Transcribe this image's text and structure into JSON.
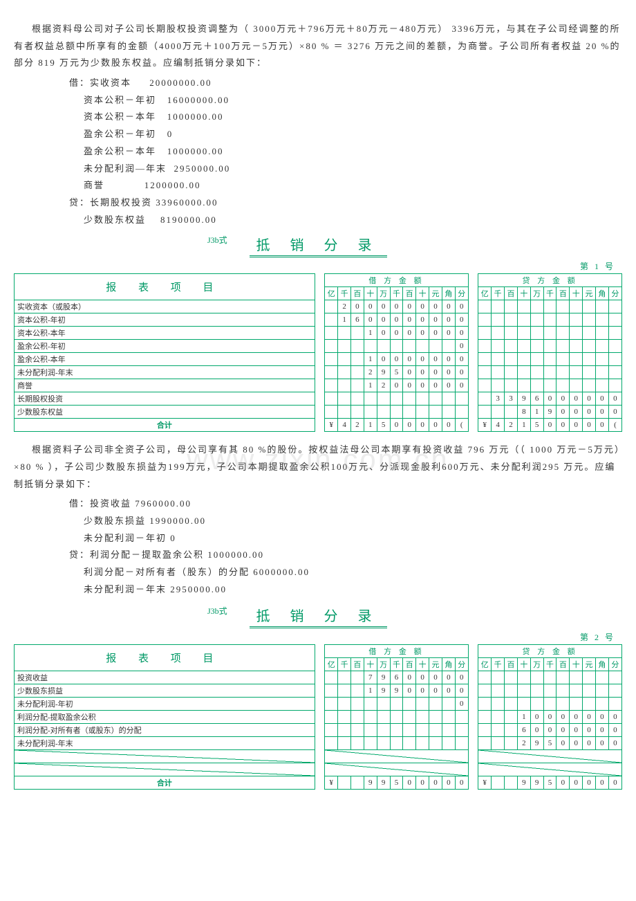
{
  "watermark": "www.zixin.com.cn",
  "block1": {
    "para": "根据资料母公司对子公司长期股权投资调整为（ 3000万元＋796万元＋80万元－480万元） 3396万元，与其在子公司经调整的所有者权益总额中所享有的金额（4000万元＋100万元－5万元）×80 % ＝ 3276 万元之间的差额，为商誉。子公司所有者权益 20 %的部分 819 万元为少数股东权益。应编制抵销分录如下：",
    "entries": [
      "借：实收资本     20000000.00",
      "    资本公积－年初   16000000.00",
      "    资本公积－本年   1000000.00",
      "    盈余公积－年初   0",
      "    盈余公积－本年   1000000.00",
      "    未分配利润—年末  2950000.00",
      "    商誉           1200000.00",
      "贷：长期股权投资 33960000.00",
      "    少数股东权益    8190000.00"
    ]
  },
  "form1": {
    "code": "J3b式",
    "title": "抵 销 分 录",
    "no": "第 1 号",
    "header_item": "报 表 项 目",
    "header_debit": "借 方 金 额",
    "header_credit": "贷 方 金 额",
    "units": [
      "亿",
      "千",
      "百",
      "十",
      "万",
      "千",
      "百",
      "十",
      "元",
      "角",
      "分"
    ],
    "rows": [
      {
        "label": "实收资本（或股本）",
        "d": [
          "",
          "2",
          "0",
          "0",
          "0",
          "0",
          "0",
          "0",
          "0",
          "0",
          "0"
        ],
        "c": [
          "",
          "",
          "",
          "",
          "",
          "",
          "",
          "",
          "",
          "",
          ""
        ]
      },
      {
        "label": "资本公积-年初",
        "d": [
          "",
          "1",
          "6",
          "0",
          "0",
          "0",
          "0",
          "0",
          "0",
          "0",
          "0"
        ],
        "c": [
          "",
          "",
          "",
          "",
          "",
          "",
          "",
          "",
          "",
          "",
          ""
        ]
      },
      {
        "label": "资本公积-本年",
        "d": [
          "",
          "",
          "",
          "1",
          "0",
          "0",
          "0",
          "0",
          "0",
          "0",
          "0"
        ],
        "c": [
          "",
          "",
          "",
          "",
          "",
          "",
          "",
          "",
          "",
          "",
          ""
        ]
      },
      {
        "label": "盈余公积-年初",
        "d": [
          "",
          "",
          "",
          "",
          "",
          "",
          "",
          "",
          "",
          "",
          "0"
        ],
        "c": [
          "",
          "",
          "",
          "",
          "",
          "",
          "",
          "",
          "",
          "",
          ""
        ]
      },
      {
        "label": "盈余公积-本年",
        "d": [
          "",
          "",
          "",
          "1",
          "0",
          "0",
          "0",
          "0",
          "0",
          "0",
          "0"
        ],
        "c": [
          "",
          "",
          "",
          "",
          "",
          "",
          "",
          "",
          "",
          "",
          ""
        ]
      },
      {
        "label": "未分配利润-年末",
        "d": [
          "",
          "",
          "",
          "2",
          "9",
          "5",
          "0",
          "0",
          "0",
          "0",
          "0"
        ],
        "c": [
          "",
          "",
          "",
          "",
          "",
          "",
          "",
          "",
          "",
          "",
          ""
        ]
      },
      {
        "label": "商誉",
        "d": [
          "",
          "",
          "",
          "1",
          "2",
          "0",
          "0",
          "0",
          "0",
          "0",
          "0"
        ],
        "c": [
          "",
          "",
          "",
          "",
          "",
          "",
          "",
          "",
          "",
          "",
          ""
        ]
      },
      {
        "label": "长期股权投资",
        "d": [
          "",
          "",
          "",
          "",
          "",
          "",
          "",
          "",
          "",
          "",
          ""
        ],
        "c": [
          "",
          "3",
          "3",
          "9",
          "6",
          "0",
          "0",
          "0",
          "0",
          "0",
          "0"
        ]
      },
      {
        "label": "少数股东权益",
        "d": [
          "",
          "",
          "",
          "",
          "",
          "",
          "",
          "",
          "",
          "",
          ""
        ],
        "c": [
          "",
          "",
          "",
          "8",
          "1",
          "9",
          "0",
          "0",
          "0",
          "0",
          "0"
        ]
      }
    ],
    "total_label": "合计",
    "total_d": [
      "¥",
      "4",
      "2",
      "1",
      "5",
      "0",
      "0",
      "0",
      "0",
      "0",
      "("
    ],
    "total_c": [
      "¥",
      "4",
      "2",
      "1",
      "5",
      "0",
      "0",
      "0",
      "0",
      "0",
      "("
    ]
  },
  "block2": {
    "para": "根据资料子公司非全资子公司，母公司享有其 80 %的股份。按权益法母公司本期享有投资收益 796 万元（（ 1000 万元－5万元）×80 % ），子公司少数股东损益为199万元，子公司本期提取盈余公积100万元、分派现金股利600万元、未分配利润295 万元。应编制抵销分录如下：",
    "entries": [
      "借：投资收益 7960000.00",
      "    少数股东损益 1990000.00",
      "    未分配利润－年初 0",
      "贷：利润分配－提取盈余公积 1000000.00",
      "    利润分配－对所有者（股东）的分配 6000000.00",
      "    未分配利润－年末 2950000.00"
    ]
  },
  "form2": {
    "code": "J3b式",
    "title": "抵 销 分 录",
    "no": "第 2 号",
    "rows": [
      {
        "label": "投资收益",
        "d": [
          "",
          "",
          "",
          "7",
          "9",
          "6",
          "0",
          "0",
          "0",
          "0",
          "0"
        ],
        "c": [
          "",
          "",
          "",
          "",
          "",
          "",
          "",
          "",
          "",
          "",
          ""
        ]
      },
      {
        "label": "少数股东损益",
        "d": [
          "",
          "",
          "",
          "1",
          "9",
          "9",
          "0",
          "0",
          "0",
          "0",
          "0"
        ],
        "c": [
          "",
          "",
          "",
          "",
          "",
          "",
          "",
          "",
          "",
          "",
          ""
        ]
      },
      {
        "label": "未分配利润-年初",
        "d": [
          "",
          "",
          "",
          "",
          "",
          "",
          "",
          "",
          "",
          "",
          "0"
        ],
        "c": [
          "",
          "",
          "",
          "",
          "",
          "",
          "",
          "",
          "",
          "",
          ""
        ]
      },
      {
        "label": "利润分配-提取盈余公积",
        "d": [
          "",
          "",
          "",
          "",
          "",
          "",
          "",
          "",
          "",
          "",
          ""
        ],
        "c": [
          "",
          "",
          "",
          "1",
          "0",
          "0",
          "0",
          "0",
          "0",
          "0",
          "0"
        ]
      },
      {
        "label": "利润分配-对所有者（或股东）的分配",
        "d": [
          "",
          "",
          "",
          "",
          "",
          "",
          "",
          "",
          "",
          "",
          ""
        ],
        "c": [
          "",
          "",
          "",
          "6",
          "0",
          "0",
          "0",
          "0",
          "0",
          "0",
          "0"
        ]
      },
      {
        "label": "未分配利润-年末",
        "d": [
          "",
          "",
          "",
          "",
          "",
          "",
          "",
          "",
          "",
          "",
          ""
        ],
        "c": [
          "",
          "",
          "",
          "2",
          "9",
          "5",
          "0",
          "0",
          "0",
          "0",
          "0"
        ]
      },
      {
        "label": "",
        "d": [
          "",
          "",
          "",
          "",
          "",
          "",
          "",
          "",
          "",
          "",
          ""
        ],
        "c": [
          "",
          "",
          "",
          "",
          "",
          "",
          "",
          "",
          "",
          "",
          ""
        ],
        "diag": true
      },
      {
        "label": "",
        "d": [
          "",
          "",
          "",
          "",
          "",
          "",
          "",
          "",
          "",
          "",
          ""
        ],
        "c": [
          "",
          "",
          "",
          "",
          "",
          "",
          "",
          "",
          "",
          "",
          ""
        ],
        "diag": true
      }
    ],
    "total_label": "合计",
    "total_d": [
      "¥",
      "",
      "",
      "9",
      "9",
      "5",
      "0",
      "0",
      "0",
      "0",
      "0"
    ],
    "total_c": [
      "¥",
      "",
      "",
      "9",
      "9",
      "5",
      "0",
      "0",
      "0",
      "0",
      "0"
    ]
  },
  "colors": {
    "green": "#00a86b",
    "title_green": "#009966"
  }
}
